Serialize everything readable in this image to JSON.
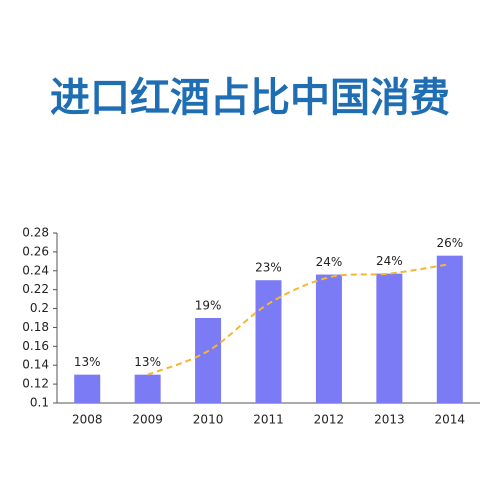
{
  "chart_data": {
    "type": "bar",
    "title": "进口红酒占比中国消费",
    "categories": [
      "2008",
      "2009",
      "2010",
      "2011",
      "2012",
      "2013",
      "2014"
    ],
    "values": [
      0.13,
      0.13,
      0.19,
      0.23,
      0.236,
      0.237,
      0.256
    ],
    "value_labels": [
      "13%",
      "13%",
      "19%",
      "23%",
      "24%",
      "24%",
      "26%"
    ],
    "color": "#7b7bf5",
    "line": {
      "values": [
        null,
        0.13,
        0.155,
        0.205,
        0.233,
        0.237,
        0.247
      ],
      "color": "#f5b731",
      "dashed": true
    },
    "ylim": [
      0.1,
      0.28
    ],
    "yticks": [
      0.1,
      0.12,
      0.14,
      0.16,
      0.18,
      0.2,
      0.22,
      0.24,
      0.26,
      0.28
    ],
    "grid": false
  }
}
